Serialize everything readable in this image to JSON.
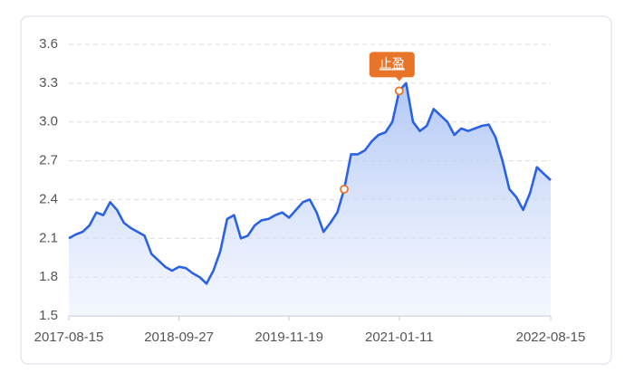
{
  "chart_data": {
    "type": "line",
    "categories": [
      "2017-08-15",
      null,
      null,
      null,
      null,
      null,
      null,
      null,
      null,
      null,
      null,
      null,
      null,
      null,
      null,
      null,
      "2018-09-27",
      null,
      null,
      null,
      null,
      null,
      null,
      null,
      null,
      null,
      null,
      null,
      null,
      null,
      null,
      null,
      "2019-11-19",
      null,
      null,
      null,
      null,
      null,
      null,
      null,
      null,
      null,
      null,
      null,
      null,
      null,
      null,
      null,
      "2021-01-11",
      null,
      null,
      null,
      null,
      null,
      null,
      null,
      null,
      null,
      null,
      null,
      null,
      null,
      null,
      null,
      null,
      null,
      null,
      null,
      null,
      null,
      "2022-08-15"
    ],
    "series": [
      {
        "color": "#2b62e3",
        "values": [
          2.1,
          2.13,
          2.15,
          2.2,
          2.3,
          2.28,
          2.38,
          2.32,
          2.22,
          2.18,
          2.15,
          2.12,
          1.98,
          1.93,
          1.88,
          1.85,
          1.88,
          1.87,
          1.83,
          1.8,
          1.75,
          1.85,
          2.0,
          2.25,
          2.28,
          2.1,
          2.12,
          2.2,
          2.24,
          2.25,
          2.28,
          2.3,
          2.26,
          2.32,
          2.38,
          2.4,
          2.3,
          2.15,
          2.22,
          2.3,
          2.48,
          2.75,
          2.75,
          2.78,
          2.85,
          2.9,
          2.92,
          3.0,
          3.24,
          3.3,
          3.0,
          2.93,
          2.97,
          3.1,
          3.05,
          3.0,
          2.9,
          2.95,
          2.93,
          2.95,
          2.97,
          2.98,
          2.88,
          2.7,
          2.48,
          2.42,
          2.32,
          2.45,
          2.65,
          2.6,
          2.55
        ]
      }
    ],
    "markers": [
      {
        "x": 40,
        "y": 2.48
      },
      {
        "x": 48,
        "y": 3.24,
        "label": "止盈"
      }
    ],
    "ylim": [
      1.5,
      3.6
    ],
    "yticks": [
      1.5,
      1.8,
      2.1,
      2.4,
      2.7,
      {
        "value": 3,
        "label": "3.0"
      },
      3.3,
      3.6
    ],
    "grid": true
  }
}
